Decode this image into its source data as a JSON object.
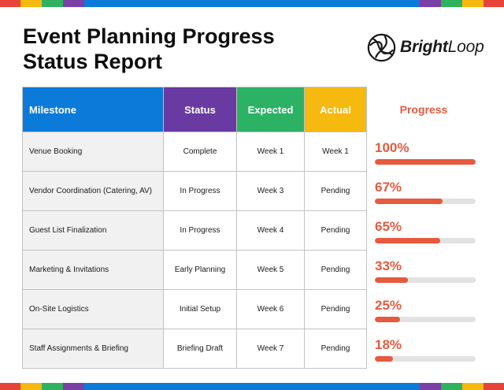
{
  "title": {
    "line1": "Event Planning Progress",
    "line2": "Status Report"
  },
  "brand": {
    "name_bold": "Bright",
    "name_rest": "Loop"
  },
  "stripe_colors": [
    "#e8433a",
    "#f6b90f",
    "#2fb25f",
    "#7a40a6",
    "#0b7ad9"
  ],
  "table": {
    "headers": [
      {
        "key": "milestone",
        "label": "Milestone",
        "color": "#0b7ad9"
      },
      {
        "key": "status",
        "label": "Status",
        "color": "#6a3aa3"
      },
      {
        "key": "expected",
        "label": "Expected",
        "color": "#2bb264"
      },
      {
        "key": "actual",
        "label": "Actual",
        "color": "#f6b90f"
      }
    ],
    "rows": [
      {
        "milestone": "Venue Booking",
        "status": "Complete",
        "expected": "Week 1",
        "actual": "Week 1"
      },
      {
        "milestone": "Vendor Coordination (Catering, AV)",
        "status": "In Progress",
        "expected": "Week 3",
        "actual": "Pending"
      },
      {
        "milestone": "Guest List Finalization",
        "status": "In Progress",
        "expected": "Week 4",
        "actual": "Pending"
      },
      {
        "milestone": "Marketing & Invitations",
        "status": "Early Planning",
        "expected": "Week 5",
        "actual": "Pending"
      },
      {
        "milestone": "On-Site Logistics",
        "status": "Initial Setup",
        "expected": "Week 6",
        "actual": "Pending"
      },
      {
        "milestone": "Staff Assignments & Briefing",
        "status": "Briefing Draft",
        "expected": "Week 7",
        "actual": "Pending"
      }
    ]
  },
  "progress": {
    "header": "Progress",
    "color": "#e65a3e",
    "items": [
      {
        "label": "100%",
        "value": 100
      },
      {
        "label": "67%",
        "value": 67
      },
      {
        "label": "65%",
        "value": 65
      },
      {
        "label": "33%",
        "value": 33
      },
      {
        "label": "25%",
        "value": 25
      },
      {
        "label": "18%",
        "value": 18
      }
    ]
  }
}
